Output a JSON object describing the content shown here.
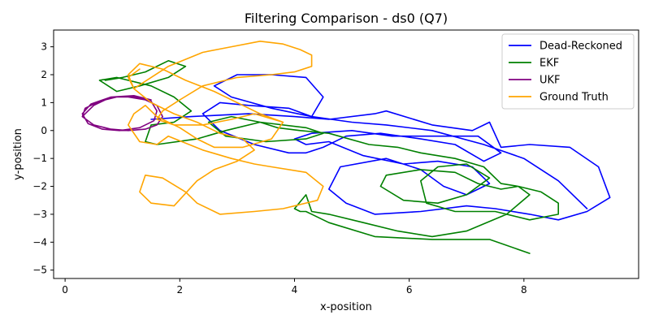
{
  "chart_data": {
    "type": "line",
    "title": "Filtering Comparison - ds0 (Q7)",
    "xlabel": "x-position",
    "ylabel": "y-position",
    "xlim": [
      -0.2,
      10.0
    ],
    "ylim": [
      -5.3,
      3.6
    ],
    "xticks": [
      0,
      2,
      4,
      6,
      8
    ],
    "yticks": [
      -5,
      -4,
      -3,
      -2,
      -1,
      0,
      1,
      2,
      3
    ],
    "legend_position": "top-right",
    "grid": false,
    "series": [
      {
        "name": "Dead-Reckoned",
        "color": "#0000ff",
        "x": [
          1.5,
          2.2,
          3.2,
          4.0,
          4.6,
          5.4,
          5.6,
          6.4,
          7.1,
          7.4,
          7.6,
          8.1,
          8.8,
          9.3,
          9.5,
          9.1,
          8.6,
          8.1,
          7.5,
          7.0,
          6.2,
          5.4,
          4.9,
          4.6,
          4.8,
          5.6,
          6.2,
          6.6,
          7.0,
          7.4,
          7.1,
          6.5,
          5.9,
          5.2,
          4.6,
          4.2,
          4.0,
          4.3,
          5.0,
          5.7,
          6.4,
          7.2,
          7.6,
          7.3,
          6.8,
          6.2,
          5.5,
          4.9,
          4.5,
          4.2,
          3.9,
          3.3,
          2.7,
          2.4,
          2.7,
          3.2,
          3.9,
          4.3,
          4.5,
          4.2,
          3.6,
          3.0,
          2.6,
          2.9,
          3.6,
          4.3,
          5.0,
          5.6,
          6.4,
          7.3,
          8.0,
          8.6,
          9.1
        ],
        "y": [
          0.4,
          0.5,
          0.6,
          0.5,
          0.4,
          0.6,
          0.7,
          0.2,
          0.0,
          0.3,
          -0.6,
          -0.5,
          -0.6,
          -1.3,
          -2.4,
          -2.9,
          -3.2,
          -3.0,
          -2.8,
          -2.7,
          -2.9,
          -3.0,
          -2.6,
          -2.1,
          -1.3,
          -1.0,
          -1.4,
          -2.0,
          -2.3,
          -1.9,
          -1.3,
          -1.1,
          -1.2,
          -0.9,
          -0.4,
          -0.5,
          -0.3,
          -0.1,
          0.0,
          -0.2,
          -0.2,
          -0.2,
          -0.8,
          -1.1,
          -0.5,
          -0.3,
          -0.1,
          -0.2,
          -0.6,
          -0.8,
          -0.8,
          -0.5,
          0.0,
          0.6,
          1.0,
          0.9,
          0.8,
          0.5,
          1.2,
          1.9,
          2.0,
          2.0,
          1.6,
          1.2,
          0.8,
          0.5,
          0.3,
          0.2,
          0.0,
          -0.5,
          -1.0,
          -1.8,
          -2.8
        ]
      },
      {
        "name": "EKF",
        "color": "#008000",
        "x": [
          0.7,
          1.0,
          1.4,
          1.8,
          2.1,
          1.8,
          1.3,
          0.9,
          0.6,
          0.9,
          1.5,
          1.9,
          2.2,
          1.9,
          1.5,
          1.4,
          1.6,
          2.3,
          2.8,
          3.4,
          4.2,
          4.5,
          4.2,
          3.5,
          2.8,
          2.5,
          2.9,
          3.4,
          3.7,
          4.1,
          4.6,
          5.3,
          5.8,
          6.2,
          6.8,
          7.3,
          7.6,
          7.9,
          8.3,
          8.6,
          8.6,
          8.1,
          7.5,
          6.8,
          6.3,
          6.2,
          6.5,
          7.0,
          7.4,
          7.0,
          6.5,
          5.9,
          5.5,
          5.6,
          6.2,
          6.8,
          7.2,
          7.6,
          7.9,
          8.1,
          7.7,
          7.0,
          6.4,
          5.8,
          5.2,
          4.6,
          4.3,
          4.2,
          4.0,
          4.1,
          4.2,
          4.6,
          5.4,
          6.4,
          7.4,
          8.1
        ],
        "y": [
          1.8,
          1.9,
          2.1,
          2.5,
          2.3,
          1.9,
          1.6,
          1.4,
          1.8,
          1.9,
          1.6,
          1.2,
          0.7,
          0.3,
          0.2,
          -0.4,
          -0.5,
          -0.3,
          0.0,
          0.3,
          0.1,
          -0.1,
          -0.3,
          -0.4,
          -0.2,
          0.3,
          0.5,
          0.3,
          0.1,
          0.0,
          -0.1,
          -0.5,
          -0.6,
          -0.8,
          -1.0,
          -1.3,
          -1.9,
          -2.0,
          -2.2,
          -2.6,
          -3.0,
          -3.2,
          -2.9,
          -2.9,
          -2.6,
          -1.8,
          -1.3,
          -1.2,
          -1.7,
          -2.3,
          -2.6,
          -2.5,
          -2.0,
          -1.6,
          -1.4,
          -1.5,
          -1.9,
          -2.1,
          -2.0,
          -2.3,
          -3.0,
          -3.6,
          -3.8,
          -3.6,
          -3.3,
          -3.0,
          -2.9,
          -2.3,
          -2.8,
          -2.9,
          -2.9,
          -3.3,
          -3.8,
          -3.9,
          -3.9,
          -4.4
        ]
      },
      {
        "name": "UKF",
        "color": "#800080",
        "x": [
          0.3,
          0.5,
          0.7,
          0.9,
          1.1,
          1.4,
          1.6,
          1.7,
          1.6,
          1.4,
          1.1,
          0.8,
          0.5,
          0.3,
          0.35,
          0.6,
          0.9,
          1.2,
          1.5,
          1.6,
          1.55,
          1.3,
          0.95,
          0.65,
          0.4,
          0.3,
          0.45,
          0.8,
          1.2,
          1.5
        ],
        "y": [
          0.5,
          0.9,
          1.1,
          1.2,
          1.2,
          1.1,
          0.9,
          0.5,
          0.2,
          0.05,
          0.0,
          0.05,
          0.2,
          0.5,
          0.8,
          1.05,
          1.2,
          1.2,
          1.05,
          0.7,
          0.35,
          0.1,
          0.0,
          0.05,
          0.25,
          0.6,
          0.95,
          1.2,
          1.25,
          1.1
        ]
      },
      {
        "name": "Ground Truth",
        "color": "#ffa500",
        "x": [
          1.3,
          1.1,
          1.2,
          1.8,
          2.4,
          2.9,
          3.4,
          3.8,
          4.1,
          4.3,
          4.3,
          4.0,
          3.6,
          3.0,
          2.4,
          2.0,
          1.7,
          1.6,
          1.9,
          2.4,
          2.9,
          3.3,
          3.8,
          3.6,
          3.1,
          2.6,
          2.3,
          2.0,
          1.6,
          1.4,
          1.2,
          1.1,
          1.3,
          1.6,
          1.8,
          2.4,
          2.9,
          3.3,
          3.6,
          4.2,
          4.5,
          4.4,
          3.8,
          3.3,
          2.7,
          2.3,
          2.1,
          1.7,
          1.4,
          1.3,
          1.5,
          1.9,
          2.3,
          2.6,
          3.0,
          3.3,
          3.1,
          2.7,
          2.3,
          1.9,
          1.5,
          1.2,
          1.1,
          1.3,
          1.7,
          2.1,
          2.6,
          3.1,
          3.4,
          3.8
        ],
        "y": [
          2.2,
          1.9,
          1.5,
          2.3,
          2.8,
          3.0,
          3.2,
          3.1,
          2.9,
          2.7,
          2.3,
          2.1,
          2.0,
          1.9,
          1.6,
          1.1,
          0.7,
          0.4,
          0.2,
          0.2,
          0.4,
          0.6,
          0.3,
          -0.3,
          -0.6,
          -0.6,
          -0.3,
          0.1,
          0.5,
          0.9,
          0.6,
          0.2,
          -0.4,
          -0.5,
          -0.2,
          -0.7,
          -1.0,
          -1.2,
          -1.3,
          -1.5,
          -2.0,
          -2.5,
          -2.8,
          -2.9,
          -3.0,
          -2.6,
          -2.2,
          -1.7,
          -1.6,
          -2.2,
          -2.6,
          -2.7,
          -1.8,
          -1.4,
          -1.1,
          -0.7,
          -0.3,
          -0.1,
          0.3,
          0.6,
          1.0,
          1.5,
          2.0,
          2.4,
          2.2,
          1.8,
          1.4,
          0.9,
          0.6,
          0.3
        ]
      }
    ]
  }
}
